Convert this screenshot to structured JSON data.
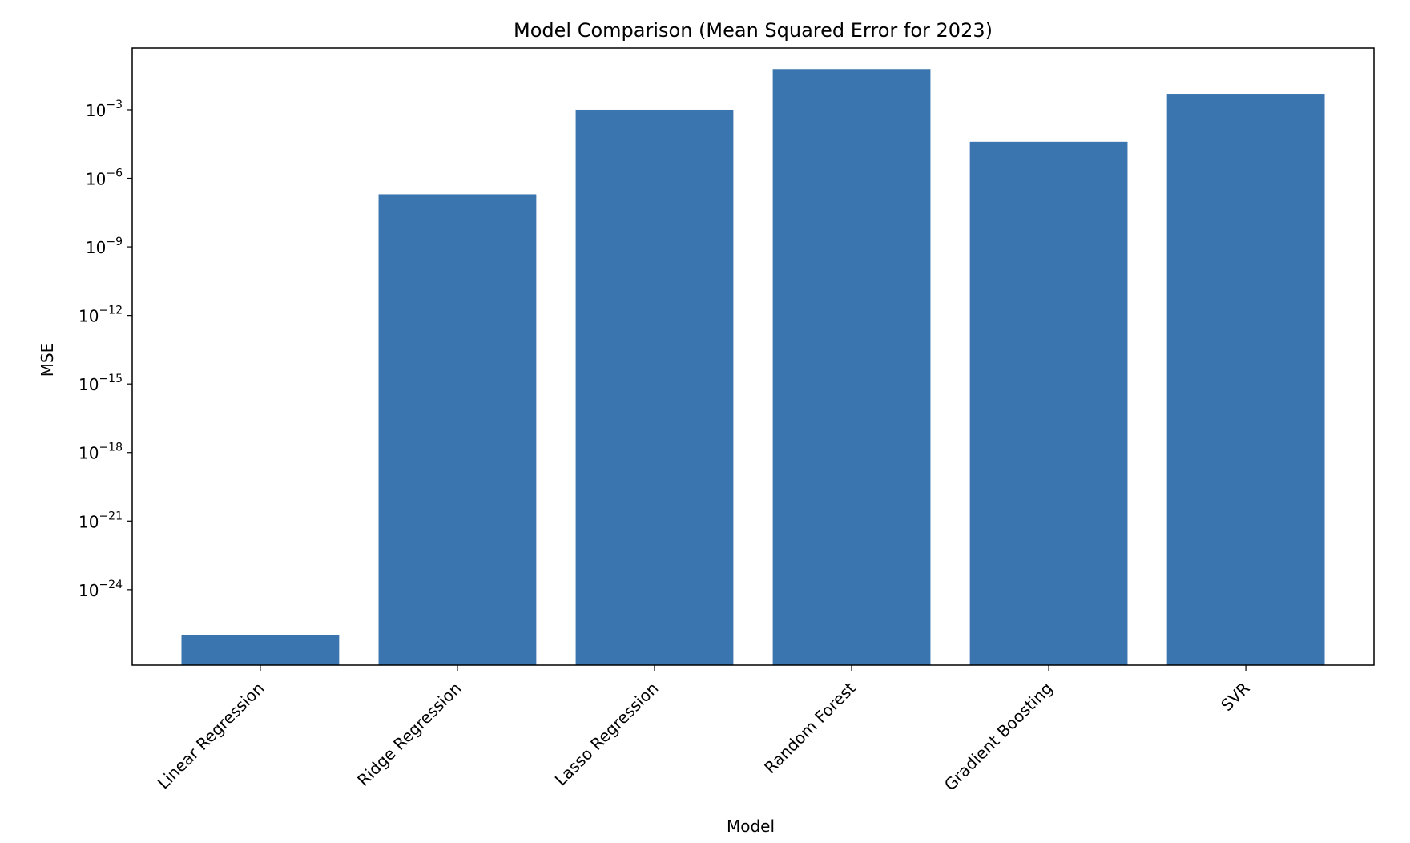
{
  "chart_data": {
    "type": "bar",
    "title": "Model Comparison (Mean Squared Error for 2023)",
    "xlabel": "Model",
    "ylabel": "MSE",
    "scale": "log",
    "grid": false,
    "categories": [
      "Linear Regression",
      "Ridge Regression",
      "Lasso Regression",
      "Random Forest",
      "Gradient Boosting",
      "SVR"
    ],
    "values": [
      1e-26,
      2e-07,
      0.001,
      0.06,
      4e-05,
      0.005
    ],
    "ylim": [
      5e-28,
      0.5
    ],
    "yticks": [
      {
        "exp": -24,
        "base": "10",
        "sup": "−24"
      },
      {
        "exp": -21,
        "base": "10",
        "sup": "−21"
      },
      {
        "exp": -18,
        "base": "10",
        "sup": "−18"
      },
      {
        "exp": -15,
        "base": "10",
        "sup": "−15"
      },
      {
        "exp": -12,
        "base": "10",
        "sup": "−12"
      },
      {
        "exp": -9,
        "base": "10",
        "sup": "−9"
      },
      {
        "exp": -6,
        "base": "10",
        "sup": "−6"
      },
      {
        "exp": -3,
        "base": "10",
        "sup": "−3"
      }
    ],
    "bar_color": "#3b75af"
  }
}
